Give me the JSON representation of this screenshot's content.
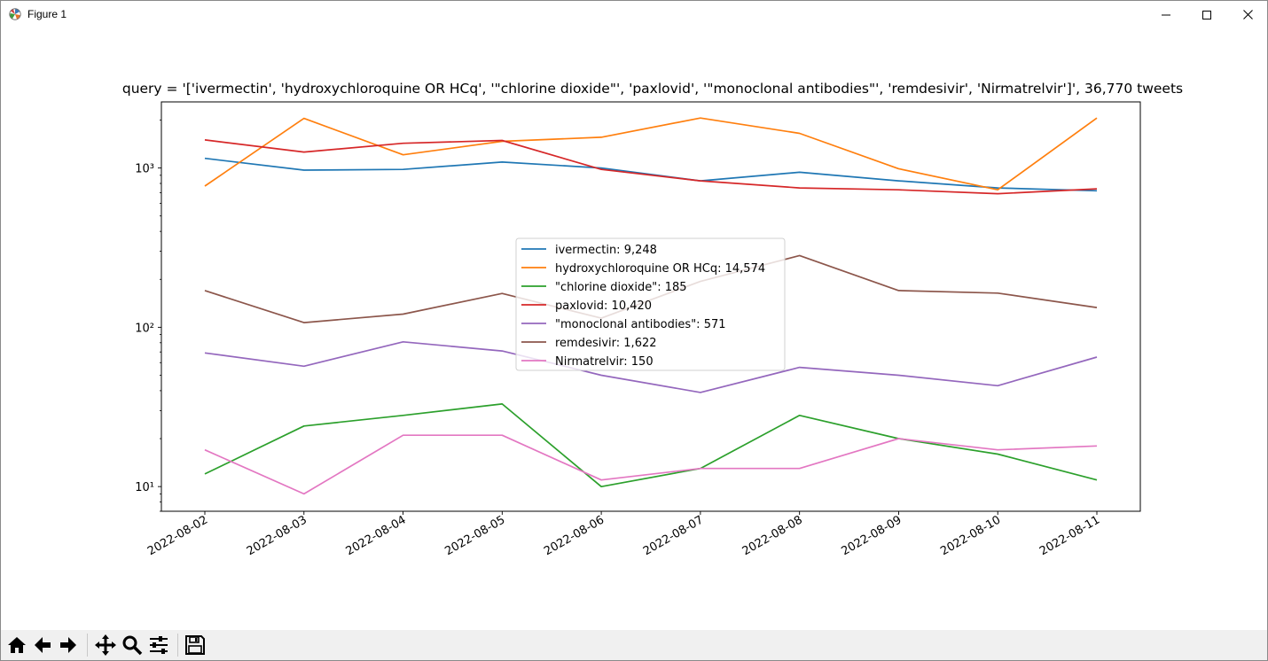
{
  "window": {
    "title": "Figure 1",
    "icons": [
      "matplotlib-logo-icon",
      "minimize-icon",
      "maximize-icon",
      "close-icon"
    ]
  },
  "toolbar": {
    "buttons": [
      "home-icon",
      "back-arrow-icon",
      "forward-arrow-icon",
      "pan-icon",
      "zoom-icon",
      "configure-subplots-icon",
      "save-icon"
    ]
  },
  "chart_data": {
    "type": "line",
    "title": "query = '['ivermectin', 'hydroxychloroquine OR HCq', '\"chlorine dioxide\"', 'paxlovid', '\"monoclonal antibodies\"', 'remdesivir', 'Nirmatrelvir']', 36,770 tweets",
    "xlabel": "",
    "ylabel": "",
    "yscale": "log",
    "ylim": [
      7,
      2600
    ],
    "yticks": [
      10,
      100,
      1000
    ],
    "ytick_labels": [
      "10¹",
      "10²",
      "10³"
    ],
    "x": [
      "2022-08-02",
      "2022-08-03",
      "2022-08-04",
      "2022-08-05",
      "2022-08-06",
      "2022-08-07",
      "2022-08-08",
      "2022-08-09",
      "2022-08-10",
      "2022-08-11"
    ],
    "grid": false,
    "legend_position": "center",
    "series": [
      {
        "name": "ivermectin: 9,248",
        "color": "#1f77b4",
        "values": [
          1150,
          970,
          980,
          1090,
          1000,
          830,
          940,
          830,
          750,
          720
        ]
      },
      {
        "name": "hydroxychloroquine OR HCq: 14,574",
        "color": "#ff7f0e",
        "values": [
          770,
          2050,
          1210,
          1470,
          1560,
          2060,
          1650,
          990,
          730,
          2060
        ]
      },
      {
        "name": "\"chlorine dioxide\": 185",
        "color": "#2ca02c",
        "values": [
          12,
          24,
          28,
          33,
          10,
          13,
          28,
          20,
          16,
          11
        ]
      },
      {
        "name": "paxlovid: 10,420",
        "color": "#d62728",
        "values": [
          1500,
          1260,
          1430,
          1490,
          980,
          830,
          750,
          730,
          690,
          740
        ]
      },
      {
        "name": "\"monoclonal antibodies\": 571",
        "color": "#9467bd",
        "values": [
          69,
          57,
          81,
          71,
          50,
          39,
          56,
          50,
          43,
          65
        ]
      },
      {
        "name": "remdesivir: 1,622",
        "color": "#8c564b",
        "values": [
          170,
          107,
          121,
          163,
          114,
          194,
          282,
          170,
          164,
          133
        ]
      },
      {
        "name": "Nirmatrelvir: 150",
        "color": "#e377c2",
        "values": [
          17,
          9,
          21,
          21,
          11,
          13,
          13,
          20,
          17,
          18
        ]
      }
    ]
  }
}
